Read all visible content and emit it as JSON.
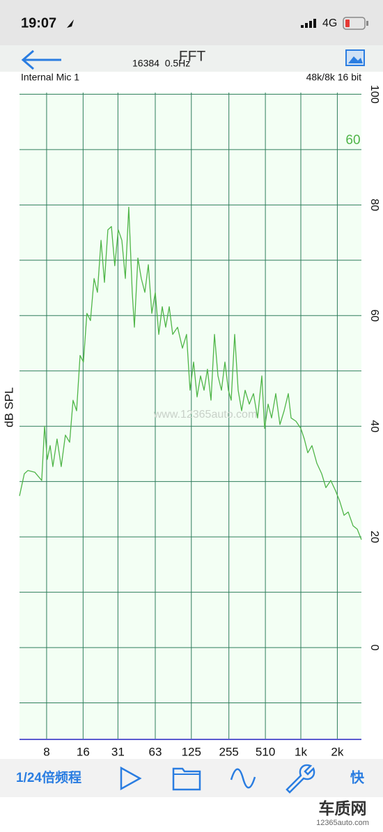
{
  "status_bar": {
    "time": "19:07",
    "network": "4G"
  },
  "header": {
    "title": "FFT",
    "fft_info": "16384  0.5Hz",
    "input": "Internal Mic 1",
    "format": "48k/8k 16 bit"
  },
  "chart_data": {
    "type": "line",
    "y_label": "dB SPL",
    "level_readout": "60",
    "watermark": "www.12365auto.com",
    "x_log": true,
    "grid": true,
    "xlim": [
      4.78,
      3160
    ],
    "ylim": [
      -16.6,
      100.3
    ],
    "xticks": [
      8,
      16,
      31,
      63,
      125,
      255,
      510,
      {
        "value": 1000,
        "label": "1k"
      },
      {
        "value": 2000,
        "label": "2k"
      }
    ],
    "yticks": [
      0,
      20,
      40,
      60,
      80,
      100
    ],
    "minor_yticks": [
      -10,
      10,
      30,
      50,
      70,
      90
    ],
    "x": [
      4.78,
      5.24,
      5.6,
      6.39,
      7.29,
      7.69,
      8.1,
      8.55,
      9.01,
      9.75,
      10.56,
      11.43,
      12.38,
      13.22,
      14.13,
      15.1,
      16.1,
      17.2,
      18.4,
      19.7,
      21.0,
      22.5,
      24.0,
      25.6,
      27.4,
      29.2,
      31.2,
      33.4,
      35.7,
      38.1,
      40.7,
      42.4,
      45.3,
      48.3,
      51.7,
      55.2,
      59.0,
      63.0,
      67.3,
      71.9,
      76.8,
      82.1,
      87.7,
      96.2,
      105.5,
      114.2,
      122,
      130.4,
      139.3,
      148.9,
      159,
      169.8,
      181.5,
      193.9,
      207.2,
      221.4,
      236.4,
      252.6,
      266.3,
      284.6,
      304,
      325,
      347,
      375.7,
      406.7,
      440,
      476.7,
      502.5,
      537,
      573.7,
      621,
      672,
      728,
      788,
      831,
      911,
      1000,
      1068,
      1141,
      1235,
      1356,
      1487,
      1610,
      1766,
      1937,
      2097,
      2270,
      2458,
      2697,
      2918,
      3160
    ],
    "series": [
      {
        "color": "#4fb548",
        "values": [
          27.4,
          31.4,
          32,
          31.7,
          30.2,
          40,
          34,
          36.5,
          32.7,
          37.7,
          32.7,
          38.4,
          37.1,
          44.7,
          42.8,
          52.8,
          51.6,
          60.4,
          59.1,
          66.7,
          64.2,
          73.6,
          66,
          75.5,
          76.1,
          69,
          75.5,
          73.6,
          66.7,
          79.6,
          64.2,
          57.9,
          70.4,
          66.7,
          64.2,
          69.2,
          60.4,
          64.2,
          56.6,
          61.6,
          57.9,
          61.6,
          56.6,
          57.9,
          54.1,
          56.6,
          46.5,
          51.6,
          45.3,
          49.1,
          46.5,
          50.3,
          44.7,
          56.6,
          49.1,
          46.5,
          51.6,
          46.5,
          44.7,
          56.6,
          46.5,
          42.8,
          46.5,
          44,
          45.9,
          41.5,
          49.1,
          39.6,
          44,
          41.5,
          45.9,
          40.3,
          42.8,
          45.9,
          41.5,
          40.9,
          39.6,
          37.7,
          35.2,
          36.5,
          33.3,
          31.4,
          28.9,
          30.2,
          28.3,
          26.4,
          23.9,
          24.5,
          22,
          21.4,
          19.5
        ]
      }
    ]
  },
  "toolbar": {
    "mode": "1/24倍频程",
    "speed": "快"
  },
  "logo": {
    "name": "车质网",
    "site": "12365auto.com"
  }
}
